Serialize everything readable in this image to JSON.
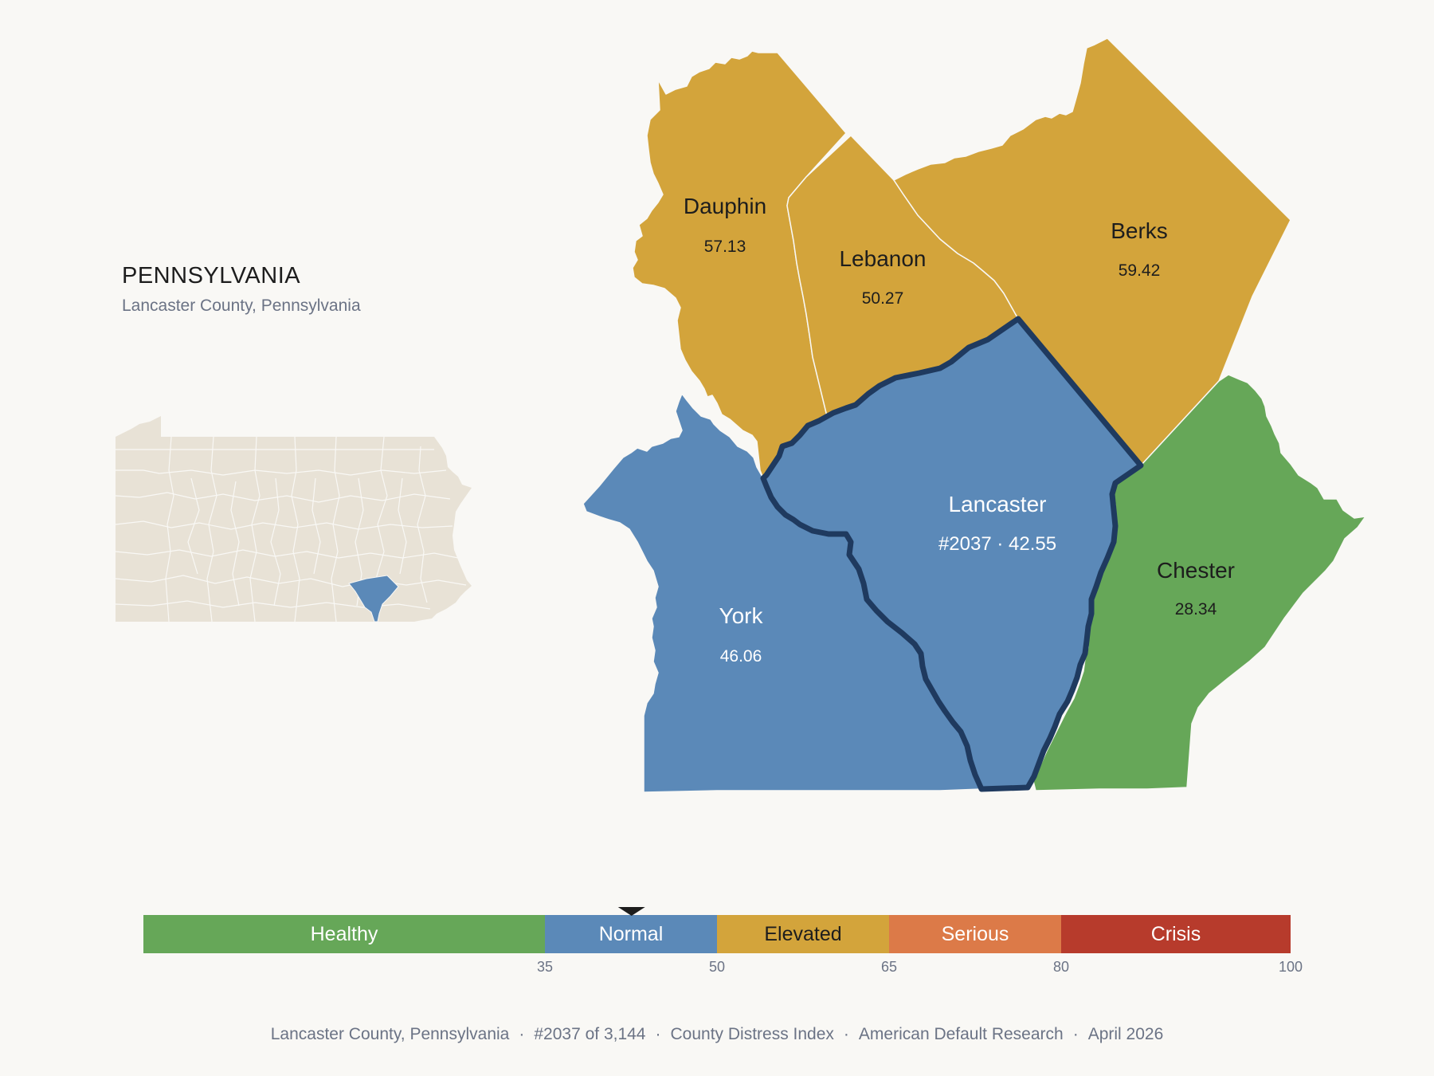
{
  "header": {
    "state_title": "PENNSYLVANIA",
    "subtitle": "Lancaster County, Pennsylvania"
  },
  "colors": {
    "healthy": "#66a758",
    "normal": "#5b89b8",
    "elevated": "#d3a43b",
    "serious": "#dc7a48",
    "crisis": "#b73b2c",
    "highlight_outline": "#1f3a5f",
    "inset_fill": "#e8e2d6"
  },
  "counties": [
    {
      "name": "Dauphin",
      "value": "57.13",
      "category": "elevated"
    },
    {
      "name": "Lebanon",
      "value": "50.27",
      "category": "elevated"
    },
    {
      "name": "Berks",
      "value": "59.42",
      "category": "elevated"
    },
    {
      "name": "Lancaster",
      "value": "#2037 · 42.55",
      "category": "normal",
      "highlighted": true
    },
    {
      "name": "York",
      "value": "46.06",
      "category": "normal"
    },
    {
      "name": "Chester",
      "value": "28.34",
      "category": "healthy"
    }
  ],
  "legend": {
    "segments": [
      {
        "label": "Healthy",
        "from": 0,
        "to": 35,
        "color": "#66a758"
      },
      {
        "label": "Normal",
        "from": 35,
        "to": 50,
        "color": "#5b89b8"
      },
      {
        "label": "Elevated",
        "from": 50,
        "to": 65,
        "color": "#d3a43b"
      },
      {
        "label": "Serious",
        "from": 65,
        "to": 80,
        "color": "#dc7a48"
      },
      {
        "label": "Crisis",
        "from": 80,
        "to": 100,
        "color": "#b73b2c"
      }
    ],
    "ticks": [
      "35",
      "50",
      "65",
      "80",
      "100"
    ],
    "marker_value": 42.55
  },
  "footer": {
    "county": "Lancaster County, Pennsylvania",
    "rank": "#2037 of 3,144",
    "index": "County Distress Index",
    "source": "American Default Research",
    "date": "April 2026"
  }
}
